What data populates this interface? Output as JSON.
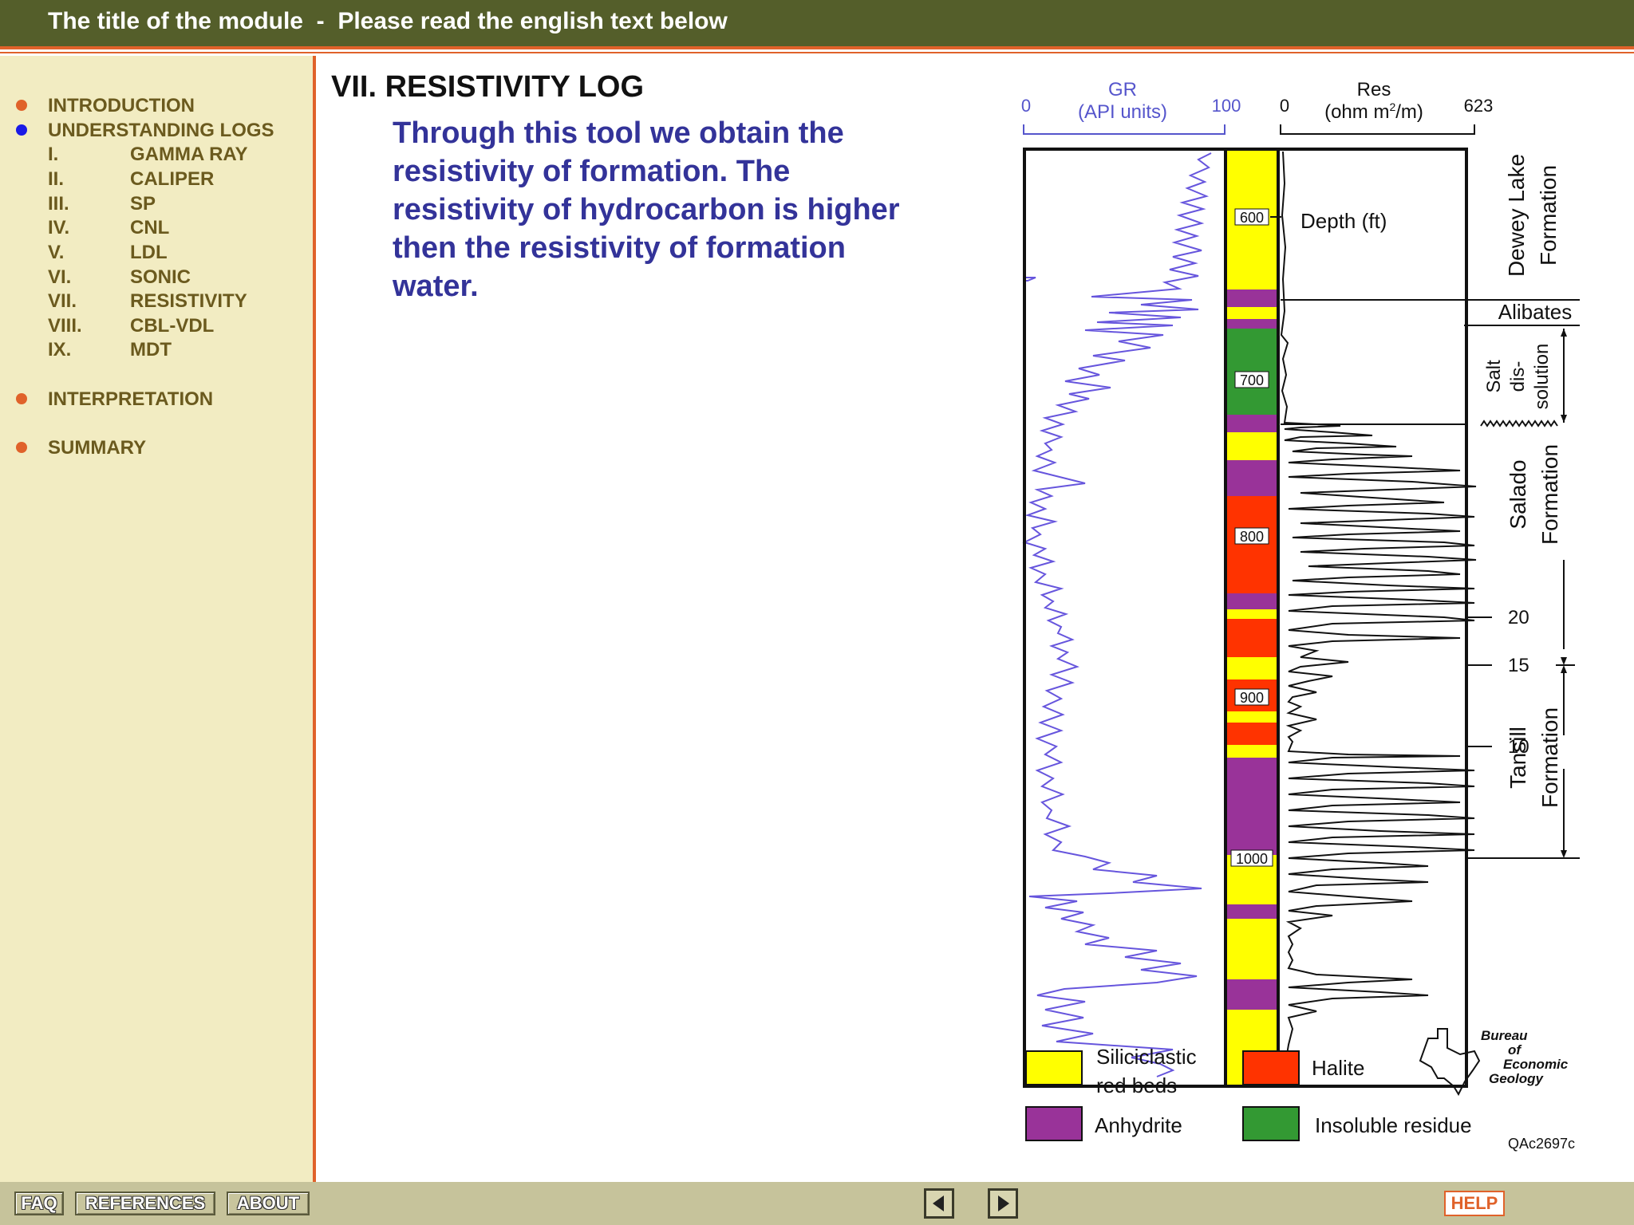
{
  "header": {
    "title": "The title of the module  -  Please read the english text below"
  },
  "sidebar": {
    "sections": [
      {
        "label": "INTRODUCTION",
        "bullet_color": "#e0622a"
      },
      {
        "label": "UNDERSTANDING LOGS",
        "bullet_color": "#1a1ae6"
      },
      {
        "label": "INTERPRETATION",
        "bullet_color": "#e0622a"
      },
      {
        "label": "SUMMARY",
        "bullet_color": "#e0622a"
      }
    ],
    "logs": [
      {
        "num": "I.",
        "label": "GAMMA RAY"
      },
      {
        "num": "II.",
        "label": "CALIPER"
      },
      {
        "num": "III.",
        "label": "SP"
      },
      {
        "num": "IV.",
        "label": "CNL"
      },
      {
        "num": "V.",
        "label": "LDL"
      },
      {
        "num": "VI.",
        "label": "SONIC"
      },
      {
        "num": "VII.",
        "label": "RESISTIVITY"
      },
      {
        "num": "VIII.",
        "label": "CBL-VDL"
      },
      {
        "num": "IX.",
        "label": "MDT"
      }
    ]
  },
  "main": {
    "title": "VII. RESISTIVITY LOG",
    "description": "Through this tool we obtain the resistivity of formation. The resistivity of hydrocarbon is higher then the resistivity of formation water."
  },
  "figure": {
    "gr_title": "GR",
    "gr_units": "(API units)",
    "gr_min": "0",
    "gr_max": "100",
    "res_title": "Res",
    "res_units_prefix": "(ohm m",
    "res_units_sup": "2",
    "res_units_suffix": "/m)",
    "res_min": "0",
    "res_max": "623",
    "depth_label": "Depth (ft)",
    "depth_marks": [
      "600",
      "700",
      "800",
      "900",
      "1000"
    ],
    "formations": {
      "dewey_lake_1": "Dewey Lake",
      "dewey_lake_2": "Formation",
      "alibates": "Alibates",
      "salt_1": "Salt",
      "salt_2": "dis-",
      "salt_3": "solution",
      "salado_1": "Salado",
      "salado_2": "Formation",
      "tansill_1": "Tansill",
      "tansill_2": "Formation"
    },
    "scale_marks": [
      "20",
      "15",
      "10"
    ],
    "legend": [
      {
        "label_1": "Siliciclastic",
        "label_2": "red beds",
        "color": "#ffff00"
      },
      {
        "label_1": "Halite",
        "label_2": "",
        "color": "#ff3300"
      },
      {
        "label_1": "Anhydrite",
        "label_2": "",
        "color": "#993399"
      },
      {
        "label_1": "Insoluble residue",
        "label_2": "",
        "color": "#339933"
      }
    ],
    "logo_1": "Bureau",
    "logo_2": "of",
    "logo_3": "Economic",
    "logo_4": "Geology",
    "code": "QAc2697c"
  },
  "footer": {
    "faq": "FAQ",
    "references": "REFERENCES",
    "about": "ABOUT",
    "help": "HELP"
  }
}
